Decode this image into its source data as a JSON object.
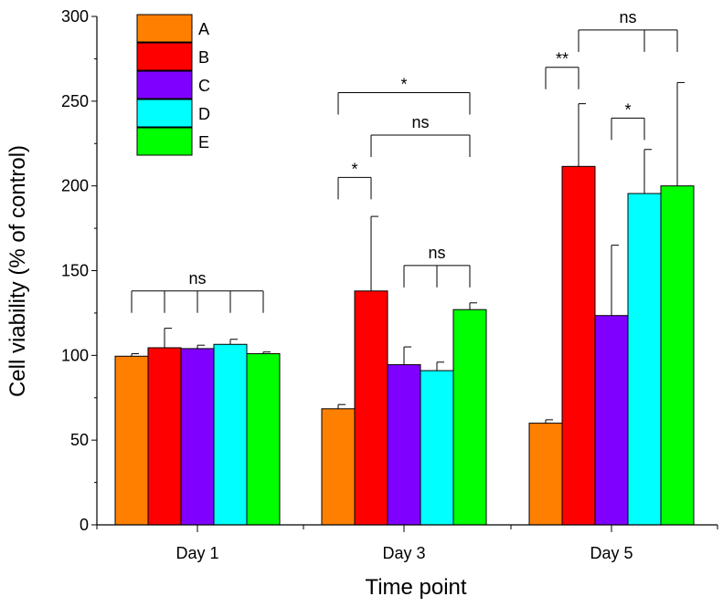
{
  "chart_data": {
    "type": "bar",
    "xlabel": "Time point",
    "ylabel": "Cell viability (% of control)",
    "ylim": [
      0,
      300
    ],
    "yticks": [
      0,
      50,
      100,
      150,
      200,
      250,
      300
    ],
    "categories": [
      "Day 1",
      "Day 3",
      "Day 5"
    ],
    "grid": false,
    "legend_position": "top-left",
    "series": [
      {
        "name": "A",
        "color": "#ff8000",
        "values": [
          99.5,
          68.5,
          60
        ],
        "errors": [
          1.5,
          2.5,
          2
        ]
      },
      {
        "name": "B",
        "color": "#ff0000",
        "values": [
          104.5,
          138,
          211.5
        ],
        "errors": [
          11.5,
          44,
          37
        ]
      },
      {
        "name": "C",
        "color": "#8000ff",
        "values": [
          104,
          94.5,
          123.5
        ],
        "errors": [
          2,
          10.5,
          41.5
        ]
      },
      {
        "name": "D",
        "color": "#00ffff",
        "values": [
          106.5,
          91,
          195.5
        ],
        "errors": [
          3,
          5,
          26
        ]
      },
      {
        "name": "E",
        "color": "#00ff00",
        "values": [
          101,
          127,
          200
        ],
        "errors": [
          1,
          4,
          61
        ]
      }
    ],
    "annotations": [
      {
        "label": "ns",
        "group": 0,
        "bars": [
          0,
          1,
          2,
          3,
          4
        ],
        "y": 138
      },
      {
        "label": "*",
        "group": 1,
        "bars": [
          0,
          4
        ],
        "y": 255
      },
      {
        "label": "ns",
        "group": 1,
        "bars": [
          1,
          4
        ],
        "y": 230
      },
      {
        "label": "*",
        "group": 1,
        "bars": [
          0,
          1
        ],
        "y": 205
      },
      {
        "label": "ns",
        "group": 1,
        "bars": [
          2,
          3,
          4
        ],
        "y": 153
      },
      {
        "label": "**",
        "group": 2,
        "bars": [
          0,
          1
        ],
        "y": 270
      },
      {
        "label": "ns",
        "group": 2,
        "bars": [
          1,
          3,
          4
        ],
        "y": 292
      },
      {
        "label": "*",
        "group": 2,
        "bars": [
          2,
          3
        ],
        "y": 240
      }
    ]
  }
}
